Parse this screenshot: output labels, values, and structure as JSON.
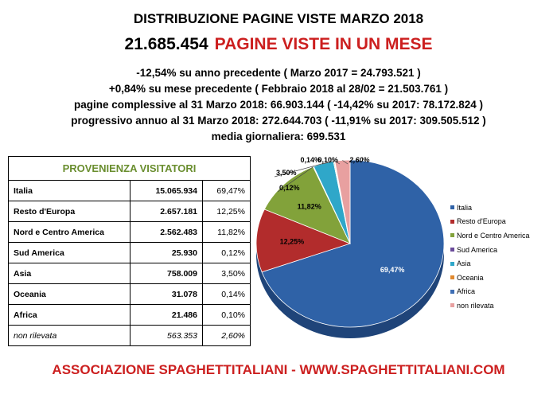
{
  "header": {
    "title": "DISTRIBUZIONE PAGINE VISTE MARZO 2018",
    "total": "21.685.454",
    "total_label": "PAGINE VISTE IN UN MESE"
  },
  "stats": [
    "-12,54% su anno precedente ( Marzo 2017 = 24.793.521 )",
    "+0,84% su mese precedente ( Febbraio 2018 al 28/02 = 21.503.761 )",
    "pagine complessive al 31 Marzo 2018: 66.903.144 ( -14,42% su 2017: 78.172.824 )",
    "progressivo annuo al 31 Marzo 2018: 272.644.703 ( -11,91% su 2017: 309.505.512 )",
    "media giornaliera: 699.531"
  ],
  "table": {
    "header": "PROVENIENZA VISITATORI",
    "rows": [
      {
        "name": "Italia",
        "value": "15.065.934",
        "pct": "69,47%"
      },
      {
        "name": "Resto d'Europa",
        "value": "2.657.181",
        "pct": "12,25%"
      },
      {
        "name": "Nord e Centro America",
        "value": "2.562.483",
        "pct": "11,82%"
      },
      {
        "name": "Sud America",
        "value": "25.930",
        "pct": "0,12%"
      },
      {
        "name": "Asia",
        "value": "758.009",
        "pct": "3,50%"
      },
      {
        "name": "Oceania",
        "value": "31.078",
        "pct": "0,14%"
      },
      {
        "name": "Africa",
        "value": "21.486",
        "pct": "0,10%"
      },
      {
        "name": "non rilevata",
        "value": "563.353",
        "pct": "2,60%"
      }
    ]
  },
  "chart_data": {
    "type": "pie",
    "title": "",
    "categories": [
      "Italia",
      "Resto d'Europa",
      "Nord e Centro America",
      "Sud America",
      "Asia",
      "Oceania",
      "Africa",
      "non rilevata"
    ],
    "values": [
      69.47,
      12.25,
      11.82,
      0.12,
      3.5,
      0.14,
      0.1,
      2.6
    ],
    "labels": [
      "69,47%",
      "12,25%",
      "11,82%",
      "0,12%",
      "3,50%",
      "0,14%",
      "0,10%",
      "2,60%"
    ],
    "colors": [
      "#2f62a7",
      "#b22c2c",
      "#82a23a",
      "#6a4b9a",
      "#2fa7c9",
      "#e0892f",
      "#3f6fb5",
      "#e8a0a0"
    ],
    "legend_position": "right"
  },
  "footer": "ASSOCIAZIONE SPAGHETTITALIANI - WWW.SPAGHETTITALIANI.COM"
}
